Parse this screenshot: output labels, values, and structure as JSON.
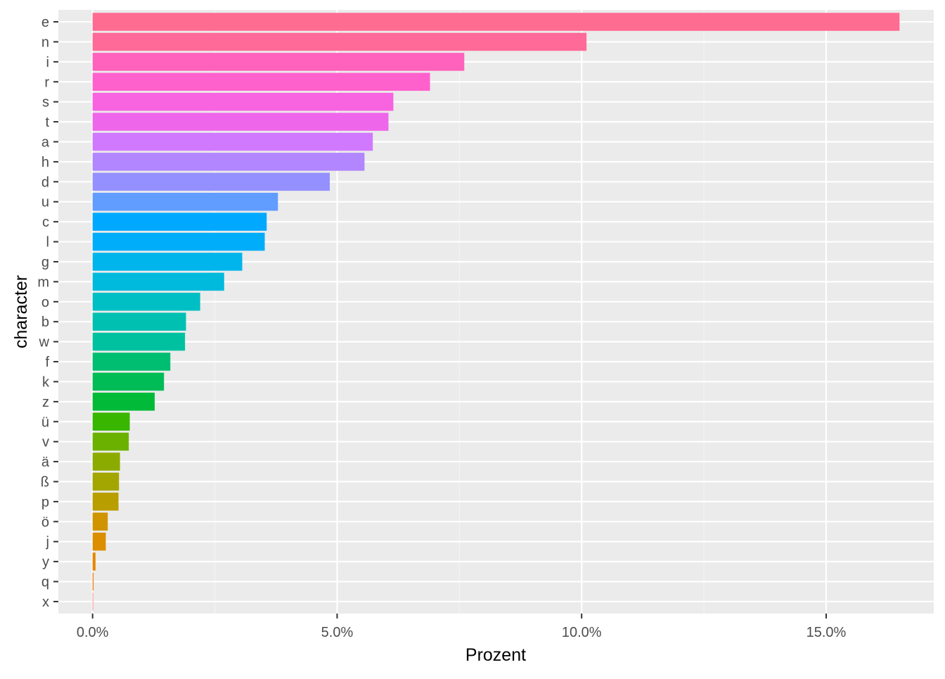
{
  "chart_data": {
    "type": "bar",
    "orientation": "horizontal",
    "title": "",
    "xlabel": "Prozent",
    "ylabel": "character",
    "xlim": [
      -0.7,
      17.2
    ],
    "x_ticks": [
      0,
      5,
      10,
      15
    ],
    "x_tick_labels": [
      "0.0%",
      "5.0%",
      "10.0%",
      "15.0%"
    ],
    "grid": true,
    "legend": "none",
    "categories": [
      "e",
      "n",
      "i",
      "r",
      "s",
      "t",
      "a",
      "h",
      "d",
      "u",
      "c",
      "l",
      "g",
      "m",
      "o",
      "b",
      "w",
      "f",
      "k",
      "z",
      "ü",
      "v",
      "ä",
      "ß",
      "p",
      "ö",
      "j",
      "y",
      "q",
      "x"
    ],
    "values": [
      16.5,
      10.1,
      7.6,
      6.9,
      6.15,
      6.05,
      5.73,
      5.56,
      4.85,
      3.79,
      3.56,
      3.52,
      3.06,
      2.69,
      2.2,
      1.91,
      1.89,
      1.59,
      1.46,
      1.27,
      0.76,
      0.74,
      0.56,
      0.54,
      0.53,
      0.31,
      0.27,
      0.06,
      0.02,
      0.01
    ],
    "colors": [
      "#FF6C91",
      "#FF6A98",
      "#FF62BC",
      "#FF61CC",
      "#F863DF",
      "#EE67EA",
      "#D079FF",
      "#B186FE",
      "#9590FF",
      "#619CFF",
      "#00A9FF",
      "#00ADFA",
      "#00B5EC",
      "#00BADD",
      "#00BFC4",
      "#00C0B2",
      "#00C19F",
      "#00BE71",
      "#00BC56",
      "#00BA38",
      "#39B600",
      "#6BB100",
      "#8CAB00",
      "#A3A500",
      "#B99E00",
      "#CF9400",
      "#DB8E00",
      "#E48800",
      "#F2811E",
      "#F8766D"
    ]
  }
}
